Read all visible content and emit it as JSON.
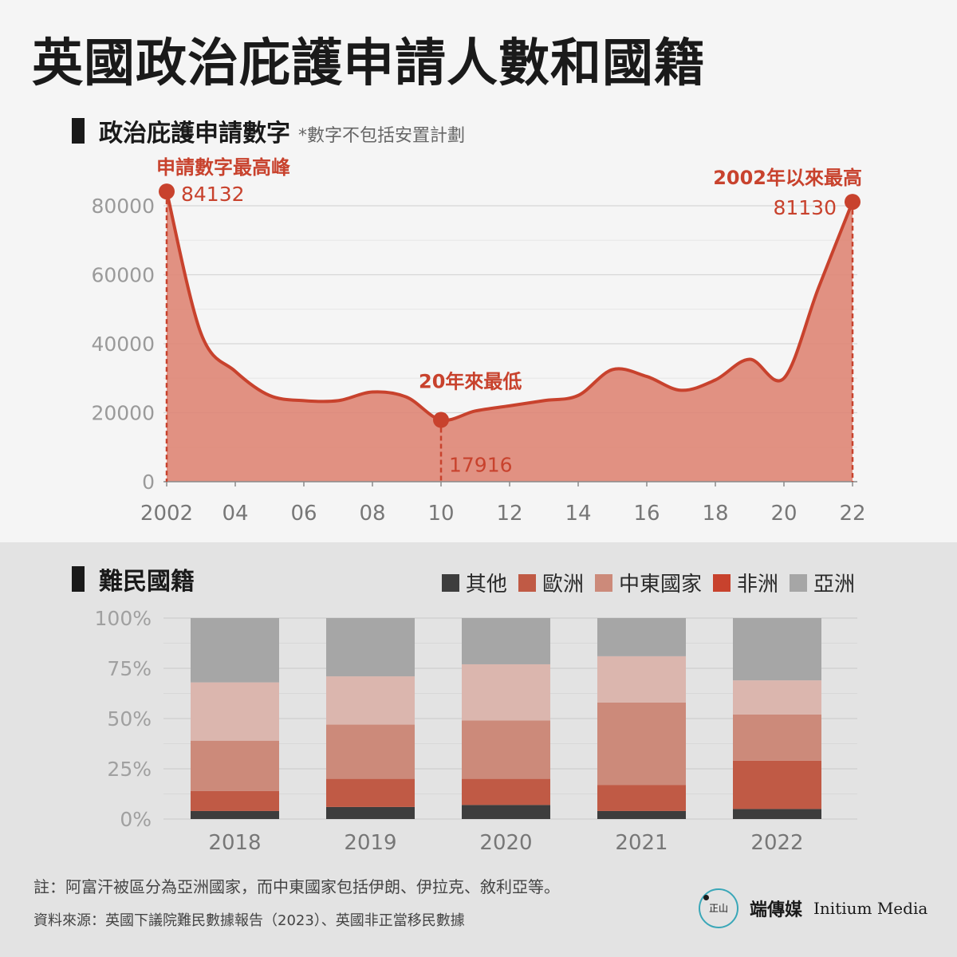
{
  "title": "英國政治庇護申請人數和國籍",
  "line_section": {
    "title": "政治庇護申請數字",
    "note": "*數字不包括安置計劃"
  },
  "bar_section": {
    "title": "難民國籍"
  },
  "annotations": {
    "peak_label": "申請數字最高峰",
    "peak_value": "84132",
    "low_label": "20年來最低",
    "low_value": "17916",
    "recent_label": "2002年以來最高",
    "recent_value": "81130"
  },
  "footer": {
    "note": "註：阿富汗被區分為亞洲國家，而中東國家包括伊朗、伊拉克、敘利亞等。",
    "source": "資料來源：英國下議院難民數據報告（2023）、英國非正當移民數據"
  },
  "brand": {
    "cn": "端傳媒",
    "en": "Initium Media",
    "logo_text": "正山"
  },
  "colors": {
    "line": "#c8422d",
    "area": "#de8877",
    "marker": "#c8422d",
    "other": "#3d3d3d",
    "europe": "#c05a45",
    "middle_east": "#cc8a7a",
    "africa": "#c8422d",
    "asia": "#a6a6a6",
    "middle_east_light": "#dbb6ae"
  },
  "chart_data": [
    {
      "type": "area",
      "x": [
        2002,
        2003,
        2004,
        2005,
        2006,
        2007,
        2008,
        2009,
        2010,
        2011,
        2012,
        2013,
        2014,
        2015,
        2016,
        2017,
        2018,
        2019,
        2020,
        2021,
        2022
      ],
      "x_tick_labels": [
        "2002",
        "04",
        "06",
        "08",
        "10",
        "12",
        "14",
        "16",
        "18",
        "20",
        "22"
      ],
      "y": [
        84132,
        43000,
        32000,
        25000,
        23500,
        23500,
        26000,
        24500,
        17916,
        20500,
        22000,
        23500,
        25000,
        32500,
        30500,
        26500,
        29500,
        35500,
        30000,
        56000,
        81130
      ],
      "ylim": [
        0,
        80000
      ],
      "y_ticks": [
        0,
        20000,
        40000,
        60000,
        80000
      ],
      "grid": true
    },
    {
      "type": "bar",
      "stacked": true,
      "percent": true,
      "categories": [
        "2018",
        "2019",
        "2020",
        "2021",
        "2022"
      ],
      "y_ticks": [
        "0%",
        "25%",
        "50%",
        "75%",
        "100%"
      ],
      "series": [
        {
          "name": "其他",
          "values": [
            4,
            6,
            7,
            4,
            5
          ]
        },
        {
          "name": "歐洲",
          "values": [
            10,
            14,
            13,
            13,
            24
          ]
        },
        {
          "name": "中東國家",
          "values": [
            25,
            27,
            29,
            41,
            23
          ]
        },
        {
          "name": "非洲",
          "values": [
            29,
            24,
            28,
            23,
            17
          ]
        },
        {
          "name": "亞洲",
          "values": [
            32,
            29,
            23,
            19,
            31
          ]
        }
      ]
    }
  ]
}
